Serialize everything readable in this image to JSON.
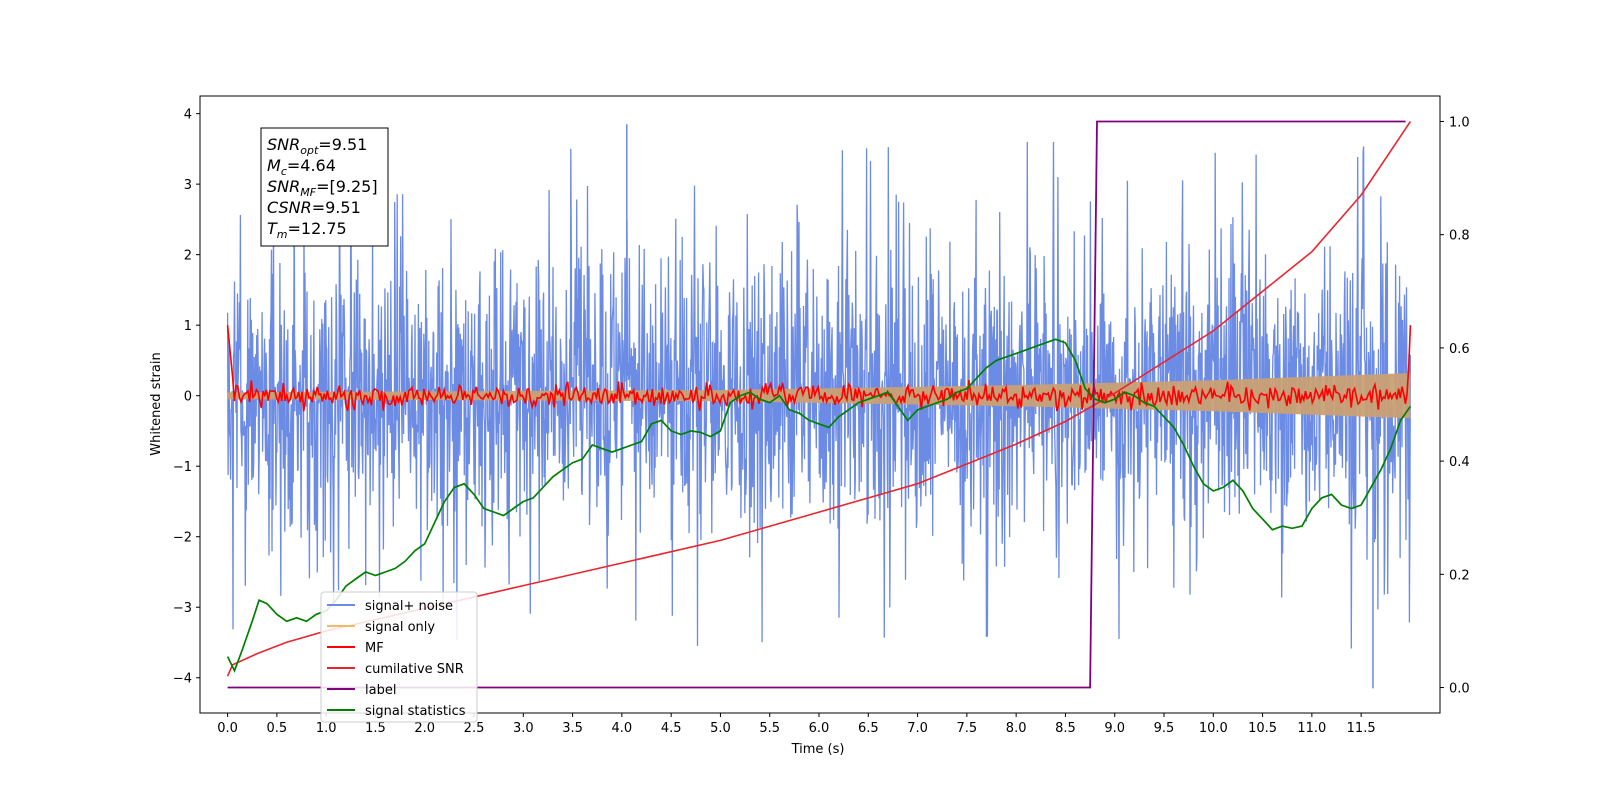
{
  "chart_data": {
    "type": "line",
    "xlabel": "Time (s)",
    "ylabel": "Whitened strain",
    "xlim": [
      -0.28,
      12.3
    ],
    "ylim": [
      -4.5,
      4.25
    ],
    "y2lim": [
      -0.045,
      1.045
    ],
    "x_ticks": [
      "0.0",
      "0.5",
      "1.0",
      "1.5",
      "2.0",
      "2.5",
      "3.0",
      "3.5",
      "4.0",
      "4.5",
      "5.0",
      "5.5",
      "6.0",
      "6.5",
      "7.0",
      "7.5",
      "8.0",
      "8.5",
      "9.0",
      "9.5",
      "10.0",
      "10.5",
      "11.0",
      "11.5"
    ],
    "y_ticks": [
      "4",
      "3",
      "2",
      "1",
      "0",
      "−1",
      "−2",
      "−3",
      "−4"
    ],
    "y2_ticks": [
      "1.0",
      "0.8",
      "0.6",
      "0.4",
      "0.2",
      "0.0"
    ],
    "legend_position": "lower-left",
    "colors": {
      "signal_noise": "#6b8be4",
      "signal_only": "#f5b86b",
      "mf": "#ff0000",
      "csnr": "#e8262e",
      "label": "#800080",
      "stats": "#008000"
    },
    "annotation": [
      {
        "base": "SNR",
        "sub": "opt",
        "rest": "=9.51"
      },
      {
        "base": "M",
        "sub": "c",
        "rest": "=4.64"
      },
      {
        "base": "SNR",
        "sub": "MF",
        "rest": "=[9.25]"
      },
      {
        "base": "CSNR",
        "sub": "",
        "rest": "=9.51"
      },
      {
        "base": "T",
        "sub": "m",
        "rest": "=12.75"
      }
    ],
    "series": [
      {
        "name": "signal+ noise",
        "axis": "left",
        "style": "noise",
        "x_range": [
          0,
          12
        ],
        "envelope": [
          -2.6,
          2.6
        ],
        "peaks": [
          3.85,
          -4.15
        ]
      },
      {
        "name": "signal only",
        "axis": "left",
        "style": "band",
        "x": [
          0,
          5,
          8,
          10,
          12
        ],
        "upper": [
          0.05,
          0.08,
          0.15,
          0.22,
          0.32
        ],
        "lower": [
          -0.05,
          -0.08,
          -0.15,
          -0.22,
          -0.32
        ]
      },
      {
        "name": "MF",
        "axis": "left",
        "style": "mf",
        "x_range": [
          0,
          12
        ],
        "start_value": 1.0,
        "end_value": 1.0,
        "jitter": 0.12
      },
      {
        "name": "cumilative SNR",
        "axis": "right",
        "x": [
          0,
          0.05,
          0.3,
          0.6,
          1.0,
          1.5,
          2.0,
          3.0,
          4.0,
          5.0,
          6.0,
          7.0,
          8.0,
          8.5,
          9.0,
          10.0,
          11.0,
          11.5,
          12.0
        ],
        "y": [
          0.02,
          0.04,
          0.06,
          0.08,
          0.1,
          0.12,
          0.14,
          0.18,
          0.22,
          0.26,
          0.31,
          0.36,
          0.43,
          0.47,
          0.52,
          0.63,
          0.77,
          0.87,
          1.0
        ]
      },
      {
        "name": "label",
        "axis": "right",
        "x": [
          0,
          8.75,
          8.82,
          11.95
        ],
        "y": [
          0.0,
          0.0,
          1.0,
          1.0
        ]
      },
      {
        "name": "signal statistics",
        "axis": "left",
        "x": [
          0.0,
          0.07,
          0.15,
          0.25,
          0.32,
          0.4,
          0.5,
          0.6,
          0.7,
          0.8,
          0.9,
          1.0,
          1.1,
          1.2,
          1.3,
          1.4,
          1.5,
          1.6,
          1.7,
          1.8,
          1.9,
          2.0,
          2.1,
          2.2,
          2.3,
          2.4,
          2.5,
          2.6,
          2.7,
          2.8,
          2.9,
          3.0,
          3.1,
          3.2,
          3.3,
          3.4,
          3.5,
          3.6,
          3.7,
          3.8,
          3.9,
          4.0,
          4.1,
          4.2,
          4.3,
          4.4,
          4.5,
          4.6,
          4.7,
          4.8,
          4.9,
          5.0,
          5.1,
          5.2,
          5.3,
          5.4,
          5.5,
          5.6,
          5.7,
          5.8,
          5.9,
          6.0,
          6.1,
          6.2,
          6.3,
          6.4,
          6.5,
          6.6,
          6.7,
          6.8,
          6.9,
          7.0,
          7.1,
          7.2,
          7.3,
          7.4,
          7.5,
          7.6,
          7.7,
          7.8,
          7.9,
          8.0,
          8.1,
          8.2,
          8.3,
          8.4,
          8.5,
          8.6,
          8.7,
          8.8,
          8.9,
          9.0,
          9.1,
          9.2,
          9.3,
          9.4,
          9.5,
          9.6,
          9.7,
          9.8,
          9.9,
          10.0,
          10.1,
          10.2,
          10.3,
          10.4,
          10.5,
          10.6,
          10.7,
          10.8,
          10.9,
          11.0,
          11.1,
          11.2,
          11.3,
          11.4,
          11.5,
          11.6,
          11.7,
          11.8,
          11.9,
          12.0
        ],
        "y": [
          -3.7,
          -3.9,
          -3.6,
          -3.2,
          -2.9,
          -2.95,
          -3.1,
          -3.2,
          -3.15,
          -3.2,
          -3.1,
          -3.05,
          -2.9,
          -2.7,
          -2.6,
          -2.5,
          -2.55,
          -2.5,
          -2.45,
          -2.35,
          -2.2,
          -2.1,
          -1.8,
          -1.5,
          -1.3,
          -1.25,
          -1.4,
          -1.6,
          -1.65,
          -1.7,
          -1.6,
          -1.5,
          -1.45,
          -1.3,
          -1.15,
          -1.05,
          -0.95,
          -0.9,
          -0.7,
          -0.75,
          -0.8,
          -0.75,
          -0.7,
          -0.65,
          -0.4,
          -0.35,
          -0.5,
          -0.55,
          -0.5,
          -0.52,
          -0.58,
          -0.5,
          -0.1,
          0.0,
          0.05,
          -0.05,
          -0.1,
          0.0,
          -0.2,
          -0.25,
          -0.35,
          -0.4,
          -0.45,
          -0.3,
          -0.2,
          -0.1,
          -0.05,
          0.0,
          0.05,
          -0.15,
          -0.35,
          -0.2,
          -0.15,
          -0.1,
          -0.05,
          0.05,
          0.1,
          0.25,
          0.4,
          0.5,
          0.55,
          0.6,
          0.65,
          0.7,
          0.75,
          0.8,
          0.75,
          0.5,
          0.1,
          -0.05,
          -0.1,
          -0.05,
          0.05,
          0.0,
          -0.1,
          -0.15,
          -0.3,
          -0.45,
          -0.7,
          -1.0,
          -1.25,
          -1.35,
          -1.3,
          -1.2,
          -1.35,
          -1.6,
          -1.75,
          -1.9,
          -1.85,
          -1.88,
          -1.85,
          -1.6,
          -1.45,
          -1.4,
          -1.55,
          -1.6,
          -1.55,
          -1.3,
          -1.05,
          -0.75,
          -0.35,
          -0.15
        ]
      }
    ]
  }
}
